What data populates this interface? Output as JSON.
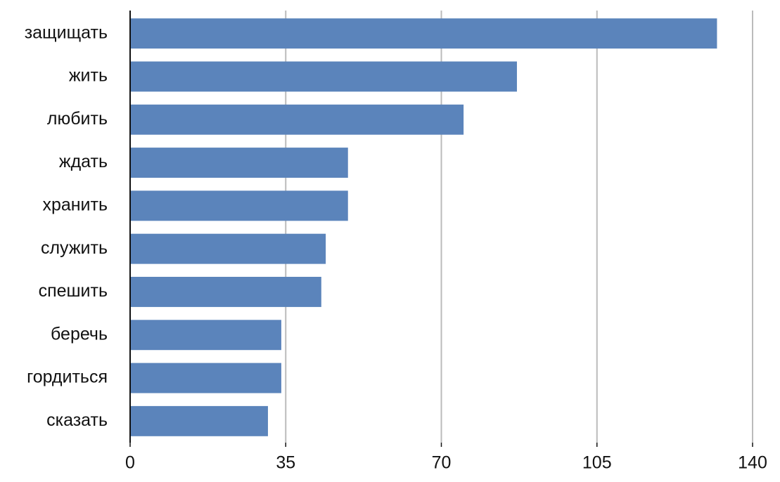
{
  "chart_data": {
    "type": "bar",
    "orientation": "horizontal",
    "categories": [
      "защищать",
      "жить",
      "любить",
      "ждать",
      "хранить",
      "служить",
      "спешить",
      "беречь",
      "гордиться",
      "сказать"
    ],
    "values": [
      132,
      87,
      75,
      49,
      49,
      44,
      43,
      34,
      34,
      31
    ],
    "color": "#5b84bb",
    "xlim": [
      0,
      140
    ],
    "xticks": [
      0,
      35,
      70,
      105,
      140
    ],
    "grid": true
  }
}
